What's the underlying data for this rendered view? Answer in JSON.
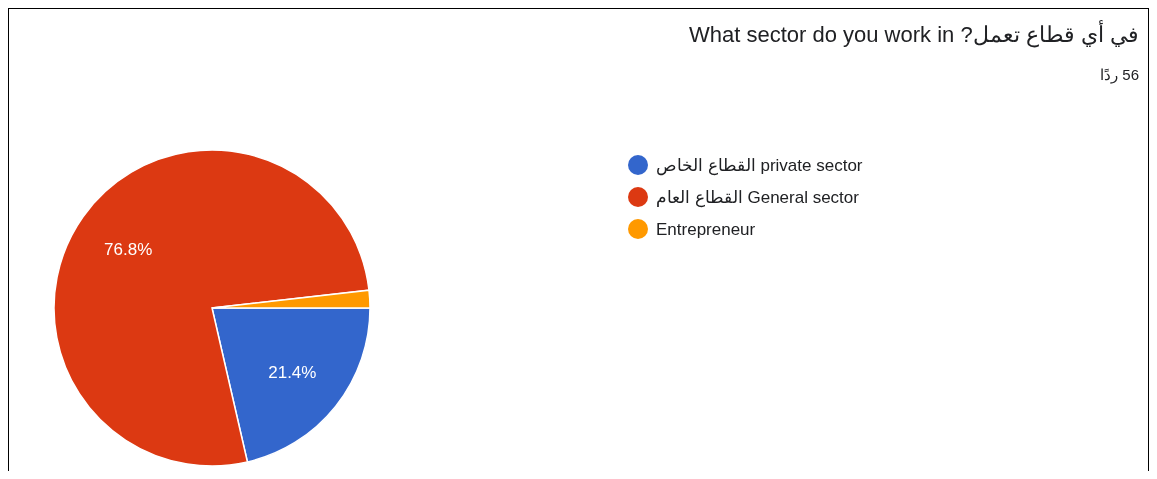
{
  "chart_data": {
    "type": "pie",
    "title": "What sector do you work in ?في أي قطاع تعمل",
    "subtitle": "56 ردًا",
    "categories": [
      "القطاع الخاص private sector",
      "القطاع العام General sector",
      "Entrepreneur"
    ],
    "values": [
      21.4,
      76.8,
      1.8
    ],
    "colors": [
      "#3366cc",
      "#dc3912",
      "#ff9900"
    ],
    "value_labels": [
      "21.4%",
      "76.8%",
      null
    ],
    "legend": "right"
  }
}
